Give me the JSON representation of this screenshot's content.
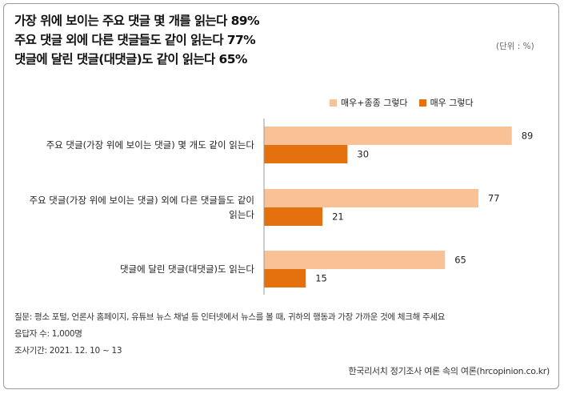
{
  "title_lines": [
    "가장 위에 보이는 주요 댓글 몇 개를 읽는다 89%",
    "주요 댓글 외에 다른 댓글들도 같이 읽는다 77%",
    "댓글에 달린 댓글(대댓글)도 같이 읽는다 65%"
  ],
  "unit_note": "(단위 : %)",
  "colors": {
    "light": "#f8c196",
    "dark": "#e4700e"
  },
  "chart_data": {
    "type": "bar",
    "orientation": "horizontal",
    "categories": [
      [
        "주요 댓글(가장 위에 보이는 댓글) 몇 개도 같이 읽는다"
      ],
      [
        "주요 댓글(가장 위에 보이는 댓글) 외에 다른 댓글들도 같이",
        "읽는다"
      ],
      [
        "댓글에 달린 댓글(대댓글)도 읽는다"
      ]
    ],
    "series": [
      {
        "name": "매우+종종 그렇다",
        "values": [
          89,
          77,
          65
        ]
      },
      {
        "name": "매우 그렇다",
        "values": [
          30,
          21,
          15
        ]
      }
    ],
    "xlim": [
      0,
      100
    ],
    "legend_position": "top-right",
    "grid": false
  },
  "footer": {
    "question": "질문:  평소 포털, 언론사 홈페이지, 유튜브 뉴스 채널 등 인터넷에서 뉴스를 볼 때, 귀하의 행동과 가장 가까운 것에 체크해 주세요",
    "respondents": "응답자 수: 1,000명",
    "period": "조사기간: 2021. 12. 10 ~ 13"
  },
  "source": "한국리서치 정기조사 여론 속의 여론(hrcopinion.co.kr)"
}
